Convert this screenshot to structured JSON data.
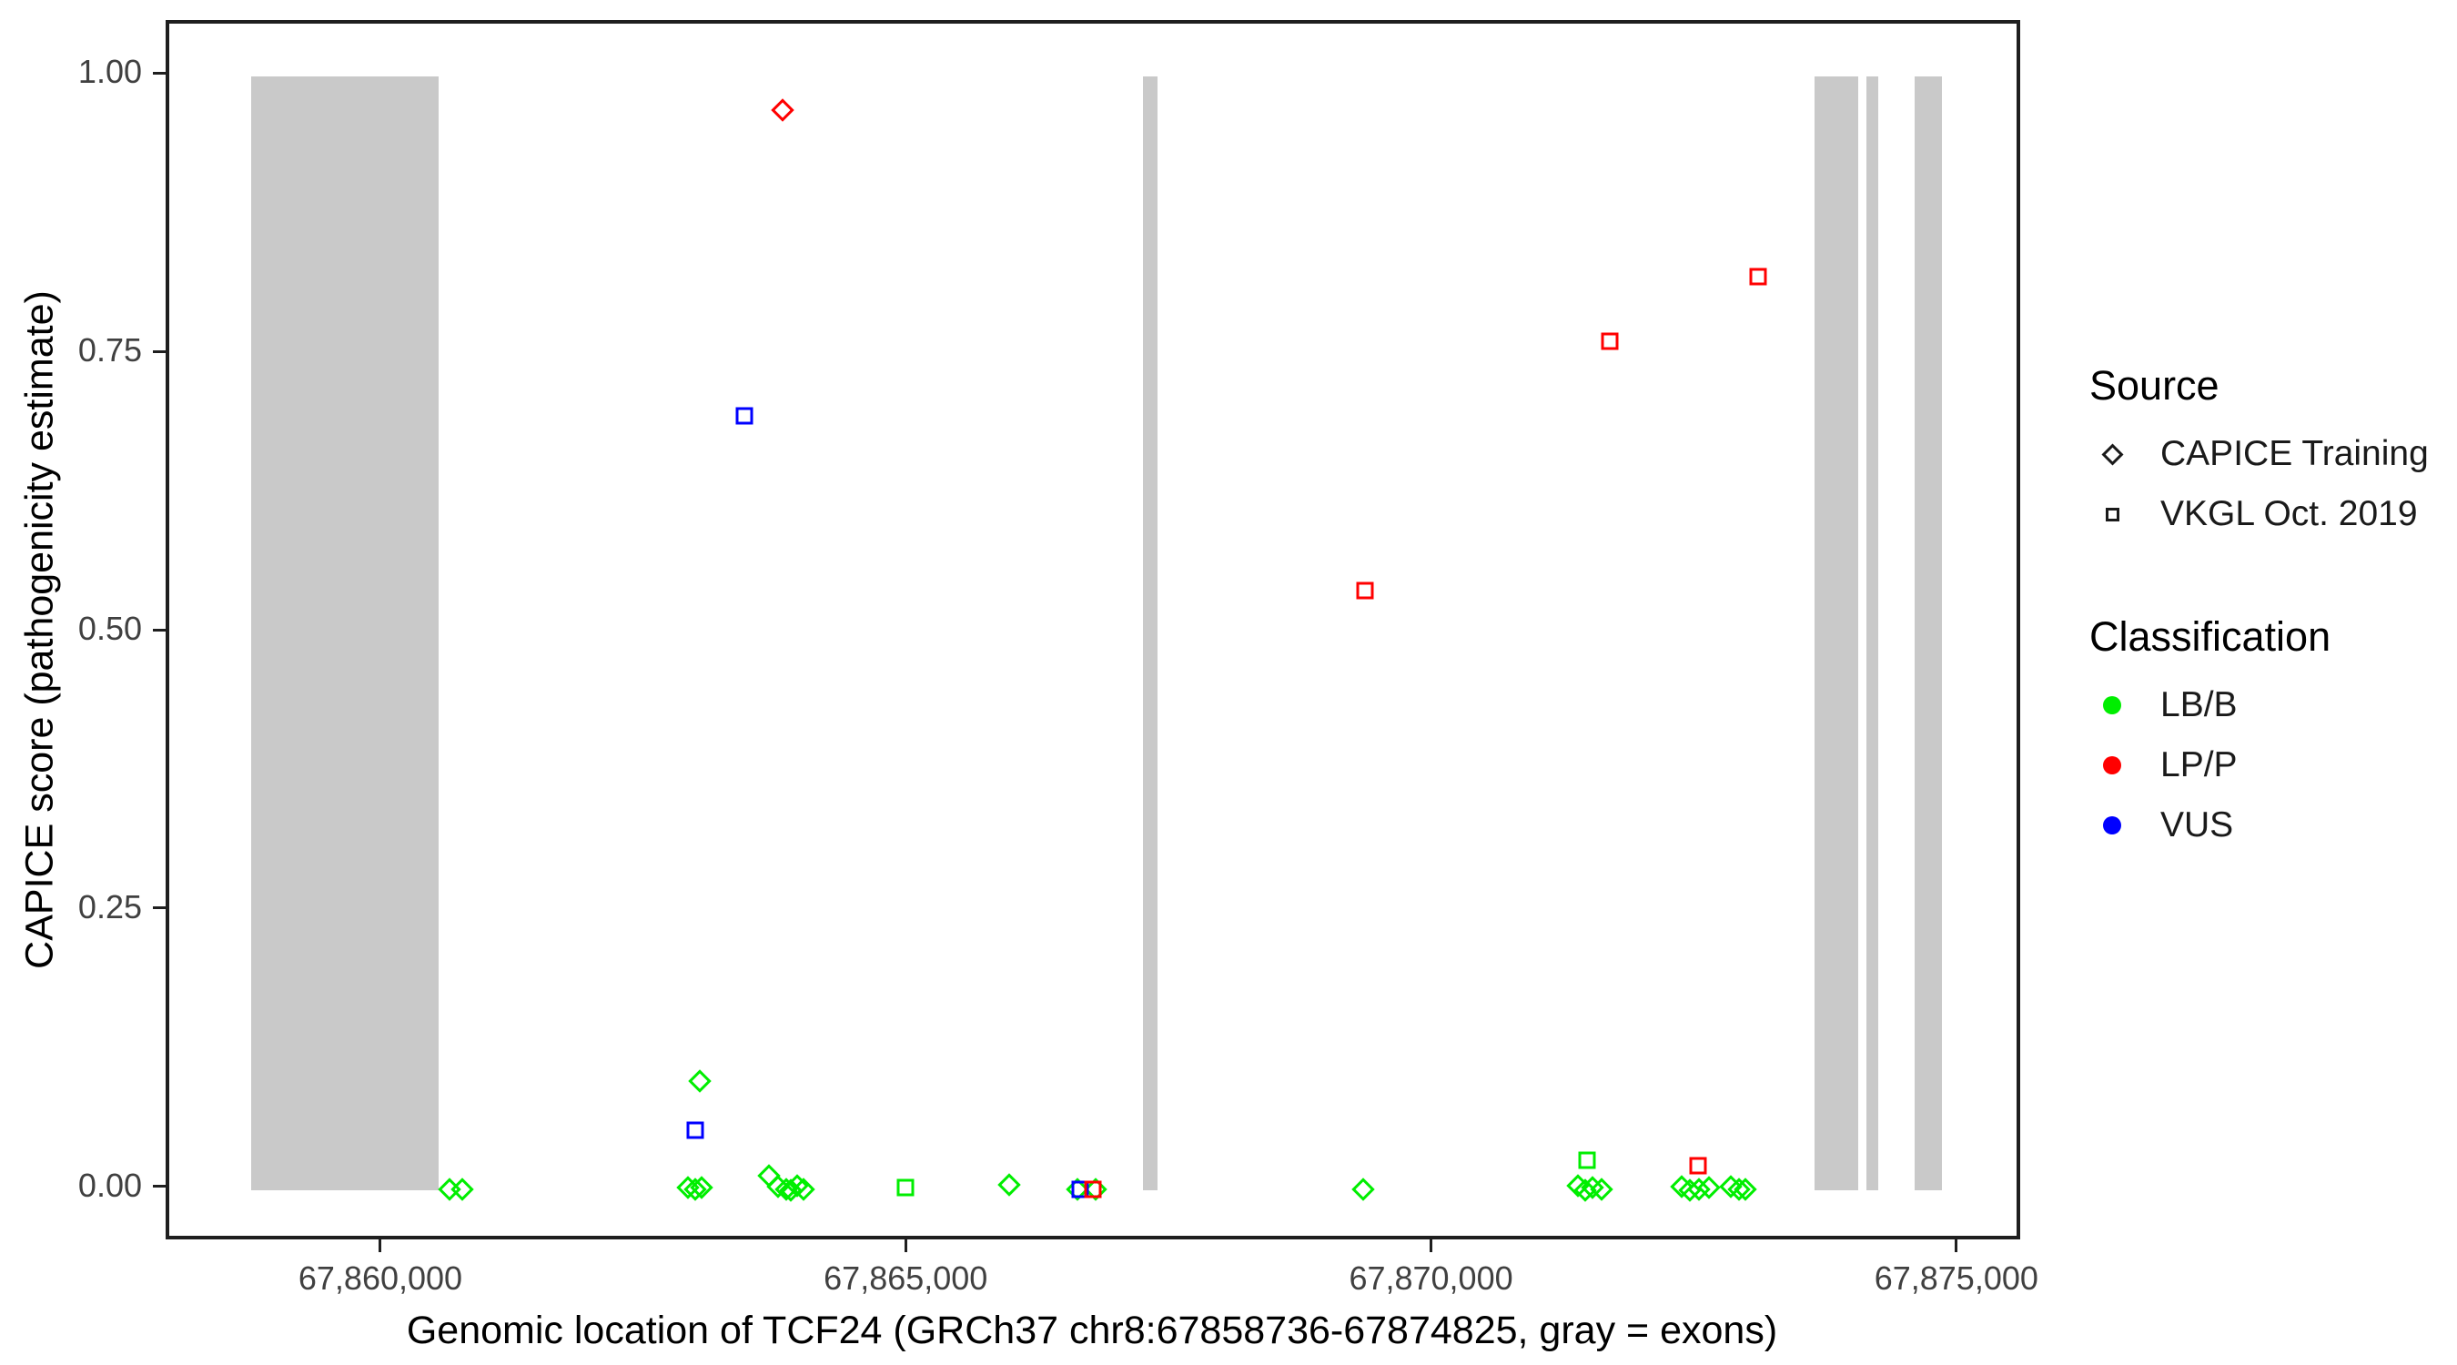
{
  "figure": {
    "background": "#FFFFFF",
    "panel_border_color": "#1F1F1F",
    "exon_band_color": "#C9C9C9"
  },
  "axes": {
    "x": {
      "title": "Genomic location of TCF24 (GRCh37 chr8:67858736-67874825, gray = exons)",
      "ticks": [
        {
          "value": 67860000,
          "label": "67,860,000"
        },
        {
          "value": 67865000,
          "label": "67,865,000"
        },
        {
          "value": 67870000,
          "label": "67,870,000"
        },
        {
          "value": 67875000,
          "label": "67,875,000"
        }
      ]
    },
    "y": {
      "title": "CAPICE score (pathogenicity estimate)",
      "ticks": [
        {
          "value": 0.0,
          "label": "0.00"
        },
        {
          "value": 0.25,
          "label": "0.25"
        },
        {
          "value": 0.5,
          "label": "0.50"
        },
        {
          "value": 0.75,
          "label": "0.75"
        },
        {
          "value": 1.0,
          "label": "1.00"
        }
      ]
    }
  },
  "legend": {
    "source": {
      "title": "Source",
      "items": [
        {
          "label": "CAPICE Training",
          "shape": "diamond"
        },
        {
          "label": "VKGL Oct. 2019",
          "shape": "square"
        }
      ]
    },
    "classification": {
      "title": "Classification",
      "items": [
        {
          "label": "LB/B",
          "color": "#00EE00"
        },
        {
          "label": "LP/P",
          "color": "#FF0000"
        },
        {
          "label": "VUS",
          "color": "#0000FF"
        }
      ]
    }
  },
  "chart_data": {
    "type": "scatter",
    "title": "",
    "xlabel": "Genomic location of TCF24 (GRCh37 chr8:67858736-67874825, gray = exons)",
    "ylabel": "CAPICE score (pathogenicity estimate)",
    "xlim": [
      67857956,
      67875608
    ],
    "ylim": [
      -0.0475,
      1.0475
    ],
    "grid": false,
    "legend_position": "right",
    "gene_region": {
      "chrom": "chr8",
      "start": 67858736,
      "end": 67874825,
      "assembly": "GRCh37",
      "gene": "TCF24"
    },
    "exons_gray_bands": [
      {
        "start": 67858736,
        "end": 67860520
      },
      {
        "start": 67867223,
        "end": 67867362
      },
      {
        "start": 67873615,
        "end": 67874031
      },
      {
        "start": 67874106,
        "end": 67874222
      },
      {
        "start": 67874568,
        "end": 67874825
      }
    ],
    "classification_colors": {
      "LB/B": "#00EE00",
      "LP/P": "#FF0000",
      "VUS": "#0000FF"
    },
    "series": [
      {
        "name": "CAPICE Training",
        "shape": "diamond",
        "points": [
          {
            "x": 67860624,
            "y": 0.001,
            "cls": "LB/B"
          },
          {
            "x": 67860745,
            "y": 0.001,
            "cls": "LB/B"
          },
          {
            "x": 67862890,
            "y": 0.002,
            "cls": "LB/B"
          },
          {
            "x": 67862960,
            "y": 0.001,
            "cls": "LB/B"
          },
          {
            "x": 67863002,
            "y": 0.098,
            "cls": "LB/B"
          },
          {
            "x": 67863020,
            "y": 0.002,
            "cls": "LB/B"
          },
          {
            "x": 67863660,
            "y": 0.013,
            "cls": "LB/B"
          },
          {
            "x": 67863750,
            "y": 0.003,
            "cls": "LB/B"
          },
          {
            "x": 67863790,
            "y": 0.97,
            "cls": "LP/P"
          },
          {
            "x": 67863830,
            "y": 0.001,
            "cls": "LB/B"
          },
          {
            "x": 67863870,
            "y": 0.0,
            "cls": "LB/B"
          },
          {
            "x": 67863930,
            "y": 0.004,
            "cls": "LB/B"
          },
          {
            "x": 67863990,
            "y": 0.001,
            "cls": "LB/B"
          },
          {
            "x": 67865950,
            "y": 0.005,
            "cls": "LB/B"
          },
          {
            "x": 67866600,
            "y": 0.001,
            "cls": "LB/B"
          },
          {
            "x": 67866770,
            "y": 0.001,
            "cls": "LB/B"
          },
          {
            "x": 67869320,
            "y": 0.001,
            "cls": "LB/B"
          },
          {
            "x": 67871360,
            "y": 0.004,
            "cls": "LB/B"
          },
          {
            "x": 67871430,
            "y": 0.0,
            "cls": "LB/B"
          },
          {
            "x": 67871500,
            "y": 0.002,
            "cls": "LB/B"
          },
          {
            "x": 67871590,
            "y": 0.001,
            "cls": "LB/B"
          },
          {
            "x": 67872350,
            "y": 0.003,
            "cls": "LB/B"
          },
          {
            "x": 67872430,
            "y": 0.0,
            "cls": "LB/B"
          },
          {
            "x": 67872520,
            "y": 0.001,
            "cls": "LB/B"
          },
          {
            "x": 67872610,
            "y": 0.002,
            "cls": "LB/B"
          },
          {
            "x": 67872820,
            "y": 0.003,
            "cls": "LB/B"
          },
          {
            "x": 67872900,
            "y": 0.001,
            "cls": "LB/B"
          },
          {
            "x": 67872960,
            "y": 0.001,
            "cls": "LB/B"
          }
        ]
      },
      {
        "name": "VKGL Oct. 2019",
        "shape": "square",
        "points": [
          {
            "x": 67862959,
            "y": 0.054,
            "cls": "VUS"
          },
          {
            "x": 67863430,
            "y": 0.695,
            "cls": "VUS"
          },
          {
            "x": 67864960,
            "y": 0.002,
            "cls": "LB/B"
          },
          {
            "x": 67866628,
            "y": 0.001,
            "cls": "VUS"
          },
          {
            "x": 67866744,
            "y": 0.001,
            "cls": "LP/P"
          },
          {
            "x": 67869336,
            "y": 0.538,
            "cls": "LP/P"
          },
          {
            "x": 67871448,
            "y": 0.027,
            "cls": "LB/B"
          },
          {
            "x": 67871667,
            "y": 0.762,
            "cls": "LP/P"
          },
          {
            "x": 67872504,
            "y": 0.022,
            "cls": "LP/P"
          },
          {
            "x": 67873075,
            "y": 0.82,
            "cls": "LP/P"
          }
        ]
      }
    ]
  }
}
